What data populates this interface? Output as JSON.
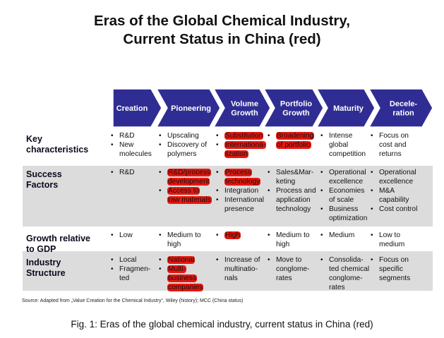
{
  "title": {
    "line1": "Eras of the Global Chemical Industry,",
    "line2": "Current Status in China (red)"
  },
  "colors": {
    "chevron": "#2f2d93",
    "highlight": "#e5170f",
    "band": "#dcdcdc"
  },
  "eras": [
    {
      "lines": [
        "Creation"
      ]
    },
    {
      "lines": [
        "Pioneering"
      ]
    },
    {
      "lines": [
        "Volume",
        "Growth"
      ]
    },
    {
      "lines": [
        "Portfolio",
        "Growth"
      ]
    },
    {
      "lines": [
        "Maturity"
      ]
    },
    {
      "lines": [
        "Decele-",
        "ration"
      ]
    }
  ],
  "rows": [
    {
      "label": [
        "Key",
        "characteristics"
      ],
      "shaded": false,
      "cells": [
        [
          {
            "lines": [
              "R&D"
            ]
          },
          {
            "lines": [
              "New",
              "molecules"
            ]
          }
        ],
        [
          {
            "lines": [
              "Upscaling"
            ]
          },
          {
            "lines": [
              "Discovery of",
              "polymers"
            ]
          }
        ],
        [
          {
            "lines": [
              "Substitution"
            ],
            "hl": true
          },
          {
            "lines": [
              "Internationa-",
              "lization"
            ],
            "hl": true
          }
        ],
        [
          {
            "lines": [
              "Broadening",
              "of portfolio"
            ],
            "hl": true
          }
        ],
        [
          {
            "lines": [
              "Intense",
              "global",
              "competition"
            ]
          }
        ],
        [
          {
            "lines": [
              "Focus on",
              "cost and",
              "returns"
            ]
          }
        ]
      ]
    },
    {
      "label": [
        "Success",
        "Factors"
      ],
      "shaded": true,
      "cells": [
        [
          {
            "lines": [
              "R&D"
            ]
          }
        ],
        [
          {
            "lines": [
              "R&D/process",
              "development"
            ],
            "hl": true
          },
          {
            "lines": [
              "Access to",
              "raw materials"
            ],
            "hl": true
          }
        ],
        [
          {
            "lines": [
              "Process",
              "technology"
            ],
            "hl": true
          },
          {
            "lines": [
              "Integration"
            ]
          },
          {
            "lines": [
              "International",
              "presence"
            ]
          }
        ],
        [
          {
            "lines": [
              "Sales&Mar-",
              "keting"
            ]
          },
          {
            "lines": [
              "Process and",
              "application",
              "technology"
            ]
          }
        ],
        [
          {
            "lines": [
              "Operational",
              "excellence"
            ]
          },
          {
            "lines": [
              "Economies",
              "of scale"
            ]
          },
          {
            "lines": [
              "Business",
              "optimization"
            ]
          }
        ],
        [
          {
            "lines": [
              "Operational",
              "excellence"
            ]
          },
          {
            "lines": [
              "M&A",
              "capability"
            ]
          },
          {
            "lines": [
              "Cost control"
            ]
          }
        ]
      ]
    },
    {
      "label": [
        "Growth relative",
        "to GDP"
      ],
      "shaded": false,
      "cells": [
        [
          {
            "lines": [
              "Low"
            ]
          }
        ],
        [
          {
            "lines": [
              "Medium to",
              "high"
            ]
          }
        ],
        [
          {
            "lines": [
              "High"
            ],
            "hl": true
          }
        ],
        [
          {
            "lines": [
              "Medium to",
              "high"
            ]
          }
        ],
        [
          {
            "lines": [
              "Medium"
            ]
          }
        ],
        [
          {
            "lines": [
              "Low to",
              "medium"
            ]
          }
        ]
      ]
    },
    {
      "label": [
        "Industry",
        "Structure"
      ],
      "shaded": true,
      "cells": [
        [
          {
            "lines": [
              "Local"
            ]
          },
          {
            "lines": [
              "Fragmen-",
              "ted"
            ]
          }
        ],
        [
          {
            "lines": [
              "National"
            ],
            "hl": true
          },
          {
            "lines": [
              "Multi-",
              "business",
              "companies"
            ],
            "hl": true
          }
        ],
        [
          {
            "lines": [
              "Increase of",
              "multinatio-",
              "nals"
            ]
          }
        ],
        [
          {
            "lines": [
              "Move to",
              "conglome-",
              "rates"
            ]
          }
        ],
        [
          {
            "lines": [
              "Consolida-",
              "ted chemical",
              "conglome-",
              "rates"
            ]
          }
        ],
        [
          {
            "lines": [
              "Focus on",
              "specific",
              "segments"
            ]
          }
        ]
      ]
    }
  ],
  "source": "Source: Adapted from „Value Creation for the Chemical Industry“, Wiley (history); MCC (China status)",
  "caption": "Fig. 1: Eras of the global chemical industry, current status in China (red)"
}
